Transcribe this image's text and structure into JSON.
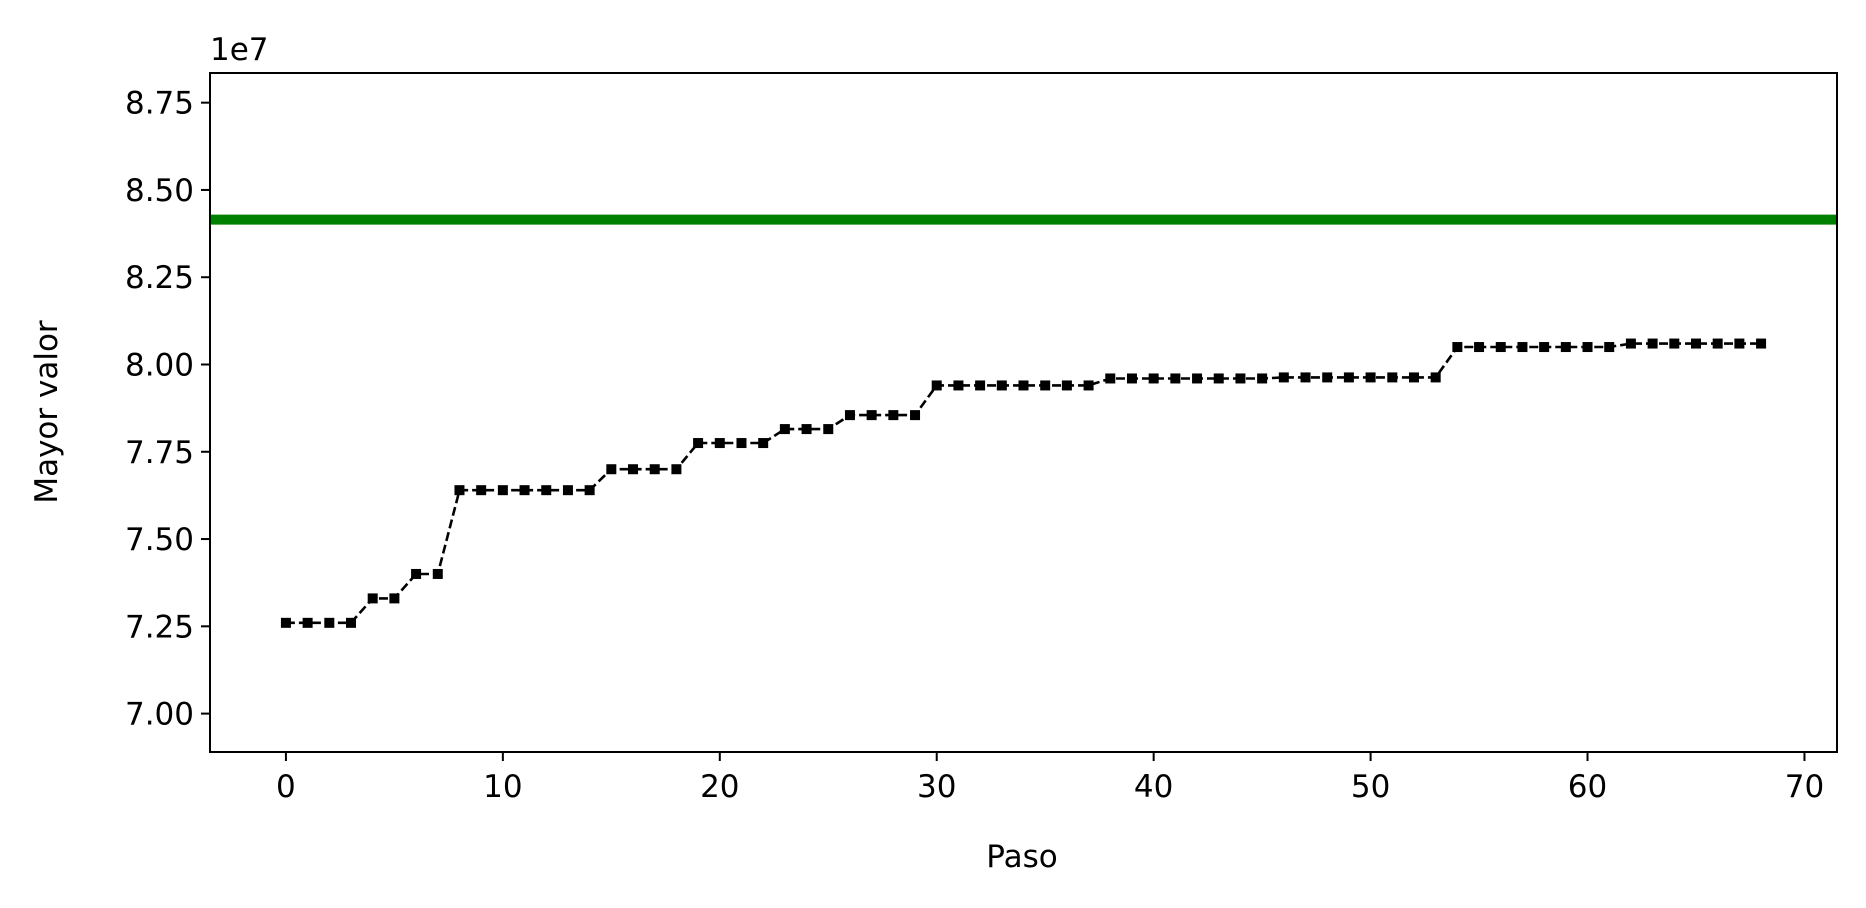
{
  "chart_data": {
    "type": "line",
    "title": "",
    "xlabel": "Paso",
    "ylabel": "Mayor valor",
    "y_offset_label": "1e7",
    "xlim": [
      -3.5,
      71.5
    ],
    "ylim": [
      6.89,
      8.835
    ],
    "x_ticks": [
      0,
      10,
      20,
      30,
      40,
      50,
      60,
      70
    ],
    "y_ticks": [
      7.0,
      7.25,
      7.5,
      7.75,
      8.0,
      8.25,
      8.5,
      8.75
    ],
    "y_tick_labels": [
      "7.00",
      "7.25",
      "7.50",
      "7.75",
      "8.00",
      "8.25",
      "8.50",
      "8.75"
    ],
    "x_tick_labels": [
      "0",
      "10",
      "20",
      "30",
      "40",
      "50",
      "60",
      "70"
    ],
    "grid": false,
    "series": [
      {
        "style": "dashed-line-square-markers",
        "color": "#000000",
        "x": [
          0,
          1,
          2,
          3,
          4,
          5,
          6,
          7,
          8,
          9,
          10,
          11,
          12,
          13,
          14,
          15,
          16,
          17,
          18,
          19,
          20,
          21,
          22,
          23,
          24,
          25,
          26,
          27,
          28,
          29,
          30,
          31,
          32,
          33,
          34,
          35,
          36,
          37,
          38,
          39,
          40,
          41,
          42,
          43,
          44,
          45,
          46,
          47,
          48,
          49,
          50,
          51,
          52,
          53,
          54,
          55,
          56,
          57,
          58,
          59,
          60,
          61,
          62,
          63,
          64,
          65,
          66,
          67,
          68
        ],
        "values": [
          7.26,
          7.26,
          7.26,
          7.26,
          7.33,
          7.33,
          7.4,
          7.4,
          7.64,
          7.64,
          7.64,
          7.64,
          7.64,
          7.64,
          7.64,
          7.7,
          7.7,
          7.7,
          7.7,
          7.775,
          7.775,
          7.775,
          7.775,
          7.815,
          7.815,
          7.815,
          7.855,
          7.855,
          7.855,
          7.855,
          7.94,
          7.94,
          7.94,
          7.94,
          7.94,
          7.94,
          7.94,
          7.94,
          7.96,
          7.96,
          7.96,
          7.96,
          7.96,
          7.96,
          7.96,
          7.96,
          7.963,
          7.963,
          7.963,
          7.963,
          7.963,
          7.963,
          7.963,
          7.963,
          8.05,
          8.05,
          8.05,
          8.05,
          8.05,
          8.05,
          8.05,
          8.05,
          8.06,
          8.06,
          8.06,
          8.06,
          8.06,
          8.06,
          8.06
        ]
      }
    ],
    "reference_line": {
      "y": 8.415,
      "color": "#008000"
    }
  }
}
